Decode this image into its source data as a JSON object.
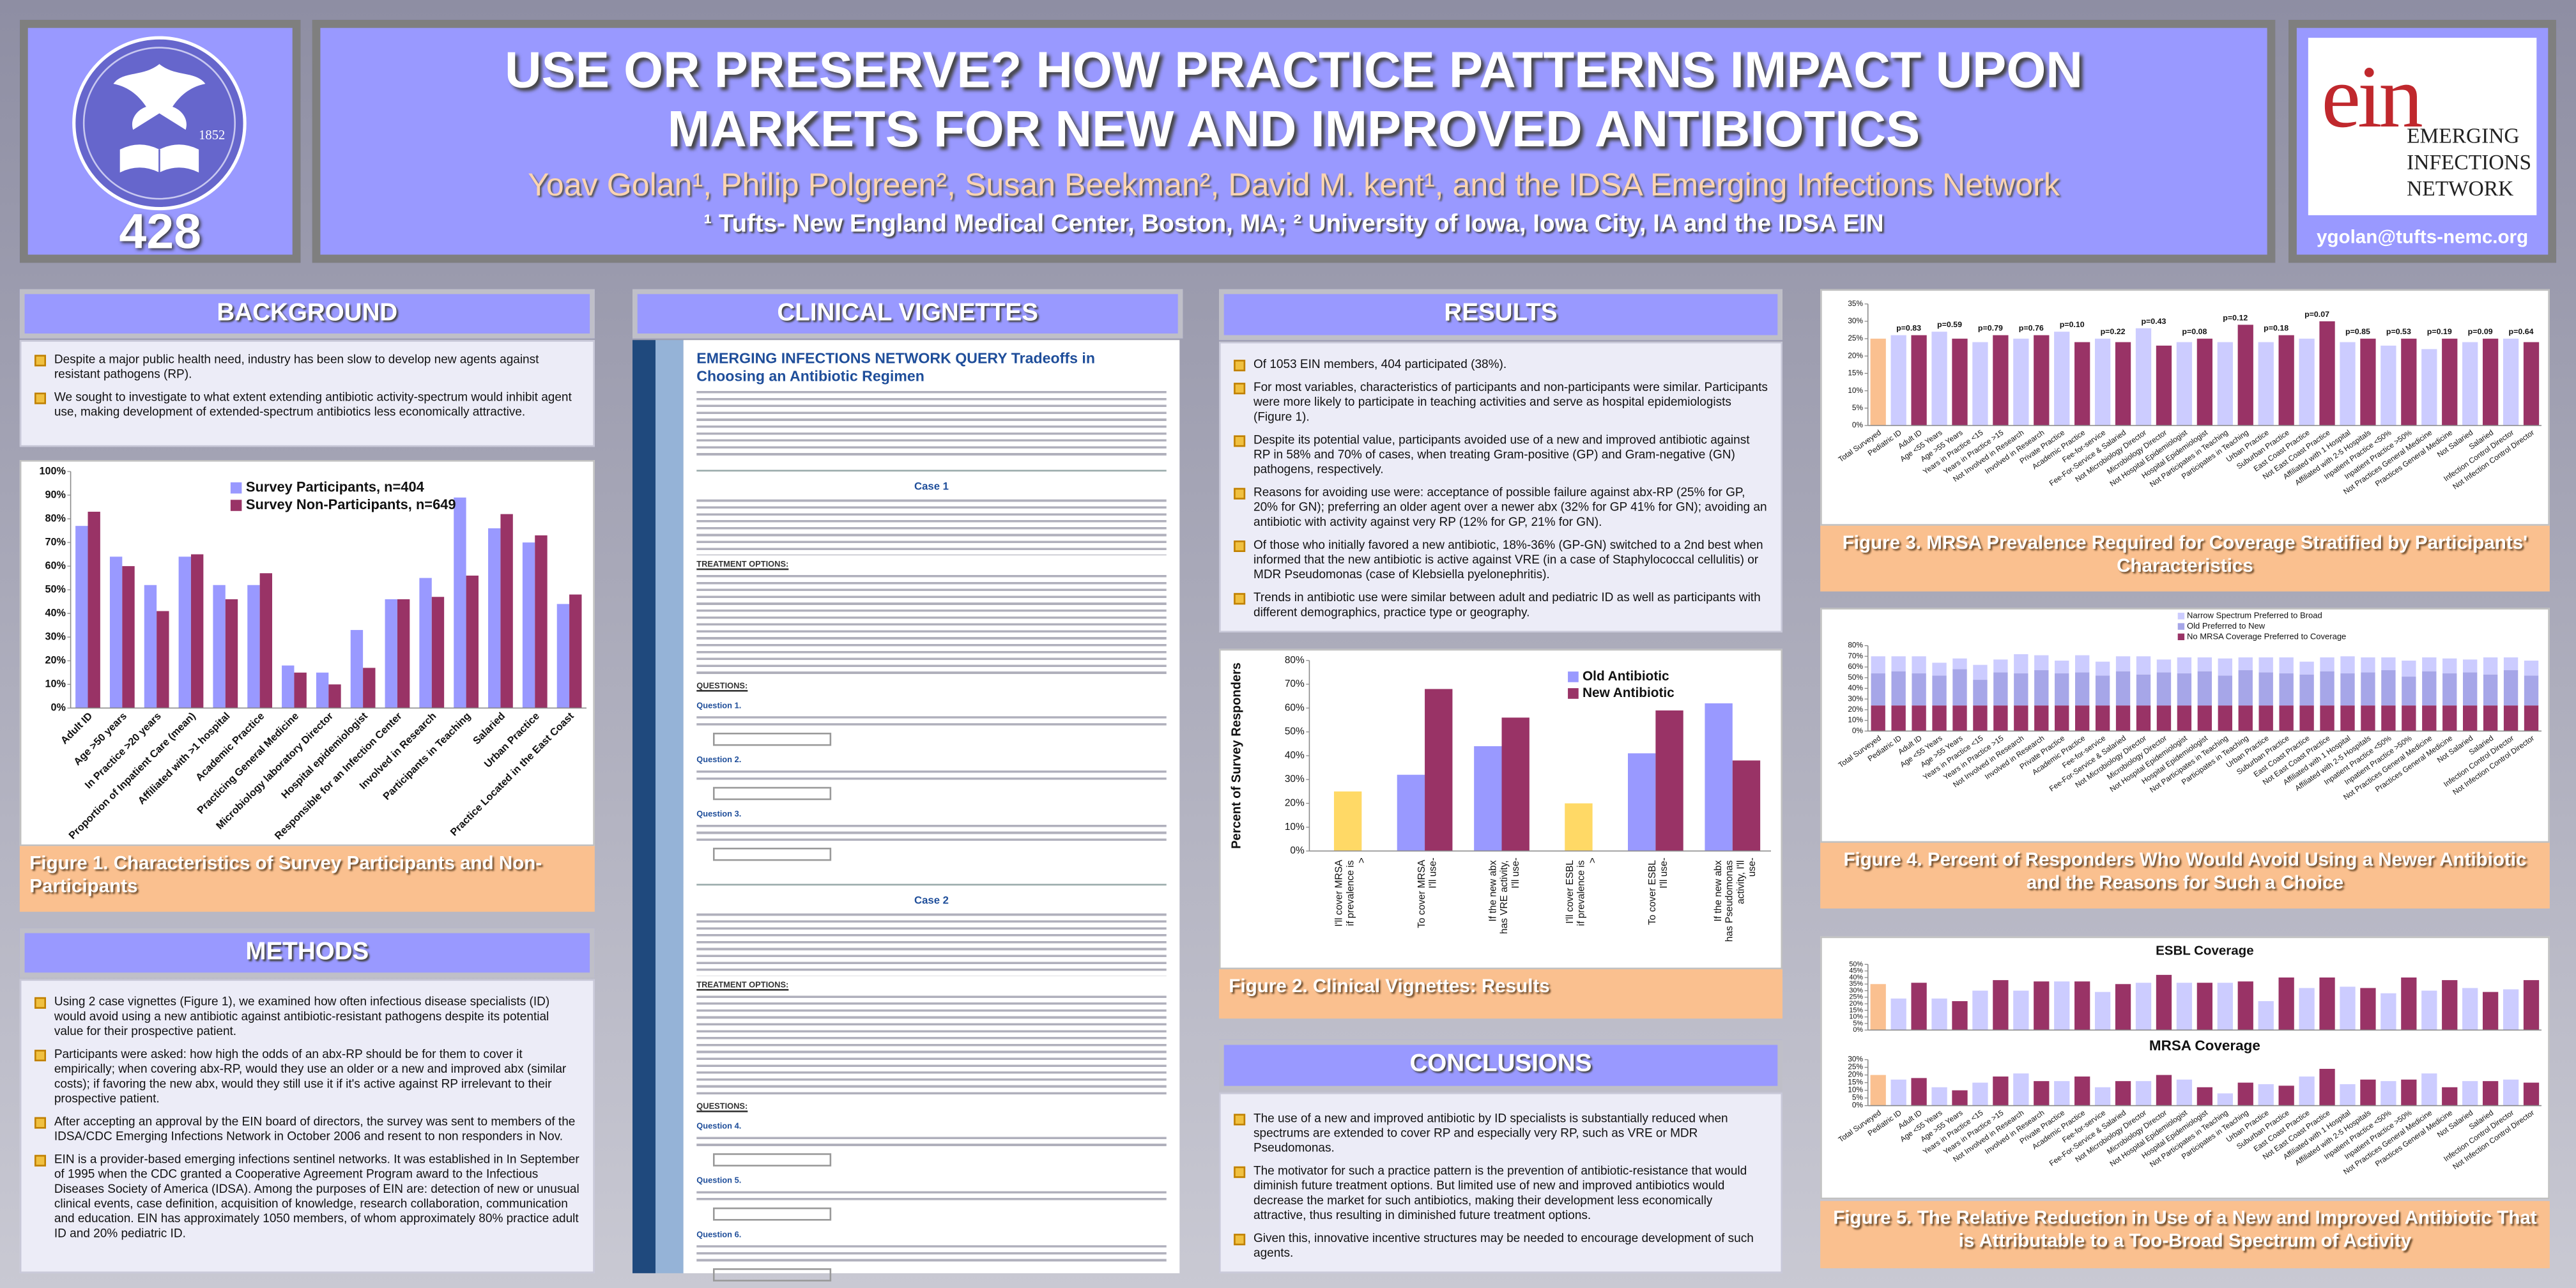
{
  "header": {
    "number": "428",
    "seal_year": "1852",
    "title_line1": "USE OR PRESERVE? HOW PRACTICE PATTERNS IMPACT UPON",
    "title_line2": "MARKETS FOR NEW AND IMPROVED ANTIBIOTICS",
    "authors": "Yoav Golan¹, Philip Polgreen², Susan Beekman², David M. kent¹, and the IDSA Emerging Infections Network",
    "affiliations": "¹ Tufts- New England Medical Center, Boston, MA;  ² University of Iowa, Iowa City, IA and the IDSA EIN",
    "logo_letters": "ein",
    "logo_name": [
      "EMERGING",
      "INFECTIONS",
      "NETWORK"
    ],
    "email": "ygolan@tufts-nemc.org"
  },
  "background": {
    "heading": "BACKGROUND",
    "bullets": [
      "Despite a major public health need, industry has been slow to develop new agents against resistant pathogens (RP).",
      "We sought to investigate to what extent extending antibiotic activity-spectrum would inhibit agent use, making development of extended-spectrum antibiotics less economically attractive."
    ]
  },
  "methods": {
    "heading": "METHODS",
    "bullets": [
      "Using 2 case vignettes (Figure 1), we examined how often infectious disease specialists (ID) would avoid using a new antibiotic against antibiotic-resistant pathogens despite its potential value for their prospective patient.",
      "Participants were asked: how high the odds of an abx-RP should be for them to cover it empirically; when covering abx-RP, would they use an older or a new and improved abx (similar costs); if favoring the new abx, would they still use it if it's active against RP irrelevant to their prospective patient.",
      "After accepting an approval by the EIN board of directors, the survey was sent to members of the IDSA/CDC Emerging Infections Network in October 2006 and resent to non responders in Nov.",
      "EIN is a provider-based emerging infections sentinel networks.  It was established in In September of 1995 when the CDC granted a Cooperative Agreement Program award to the Infectious Diseases Society of America (IDSA).  Among the purposes of EIN are: detection of new or unusual clinical events, case definition, acquisition of knowledge, research collaboration, communication and education.  EIN has approximately 1050 members, of whom approximately 80% practice adult ID and 20% pediatric ID."
    ]
  },
  "results": {
    "heading": "RESULTS",
    "bullets": [
      "Of 1053 EIN members, 404 participated (38%).",
      "For most variables, characteristics of participants and non-participants were similar. Participants were more likely to participate in teaching activities and serve as hospital epidemiologists (Figure 1).",
      "Despite its potential value, participants avoided use of a new and improved antibiotic against RP in 58% and 70% of cases, when treating Gram-positive (GP) and Gram-negative (GN) pathogens, respectively.",
      "Reasons for avoiding use were: acceptance of possible failure against abx-RP (25% for GP, 20% for GN); preferring an older agent over a newer abx (32% for GP 41% for GN); avoiding an antibiotic with activity against very RP (12% for GP, 21% for GN).",
      "Of those who initially favored a new antibiotic, 18%-36% (GP-GN) switched to a 2nd best when informed that the new antibiotic is active against VRE (in a case of Staphylococcal cellulitis) or MDR Pseudomonas (case of Klebsiella pyelonephritis).",
      "Trends in antibiotic use were similar between adult and pediatric ID as well as participants with different demographics, practice type or geography."
    ]
  },
  "conclusions": {
    "heading": "CONCLUSIONS",
    "bullets": [
      "The use of a new and improved antibiotic by ID specialists is substantially reduced when spectrums are extended to cover RP and especially very RP, such as VRE or MDR Pseudomonas.",
      "The motivator for such a practice pattern is the prevention of antibiotic-resistance that would diminish future treatment options.  But limited use of new and improved antibiotics would decrease the market for such antibiotics, making their development less economically attractive, thus  resulting in diminished future treatment options.",
      "Given this, innovative incentive structures may be needed to encourage development of such agents."
    ]
  },
  "vignettes": {
    "heading": "CLINICAL VIGNETTES",
    "doc_title_lead": "EMERGING INFECTIONS NETWORK QUERY",
    "doc_title_rest": "Tradeoffs in Choosing an Antibiotic Regimen",
    "cases": [
      {
        "heading": "Case 1",
        "treatment_label": "TREATMENT OPTIONS:",
        "questions_label": "QUESTIONS:",
        "questions": [
          "Question 1.",
          "Question 2.",
          "Question 3."
        ]
      },
      {
        "heading": "Case 2",
        "treatment_label": "TREATMENT OPTIONS:",
        "questions_label": "QUESTIONS:",
        "questions": [
          "Question 4.",
          "Question 5.",
          "Question 6."
        ]
      }
    ]
  },
  "figure5_caption": "Figure 5.  The Relative Reduction in Use of a New and Improved Antibiotic That is Attributable to a Too-Broad Spectrum of Activity",
  "chart_data": [
    {
      "type": "bar",
      "caption": "Figure 1.  Characteristics of Survey Participants and Non-Participants",
      "categories": [
        "Adult ID",
        "Age >50 years",
        "In Practice >20 years",
        "Proportion of Inpatient Care (mean)",
        "Affiliated with >1 hospital",
        "Academic Practice",
        "Practicing General Medicine",
        "Microbiology laboratory Director",
        "Hospital epidemiologist",
        "Responsible for an Infection Center",
        "Involved in Research",
        "Participants in Teaching",
        "Salaried",
        "Urban Practice",
        "Practice Located in the East Coast"
      ],
      "series": [
        {
          "name": "Survey Participants, n=404",
          "color": "#9999ff",
          "values": [
            77,
            64,
            52,
            64,
            52,
            52,
            18,
            15,
            33,
            46,
            55,
            89,
            76,
            70,
            44
          ]
        },
        {
          "name": "Survey Non-Participants, n=649",
          "color": "#993366",
          "values": [
            83,
            60,
            41,
            65,
            46,
            57,
            15,
            10,
            17,
            46,
            47,
            56,
            82,
            73,
            48
          ]
        }
      ],
      "ylim": [
        0,
        100
      ],
      "yticks": [
        {
          "value": 0,
          "label": "0%"
        },
        {
          "value": 10,
          "label": "10%"
        },
        {
          "value": 20,
          "label": "20%"
        },
        {
          "value": 30,
          "label": "30%"
        },
        {
          "value": 40,
          "label": "40%"
        },
        {
          "value": 50,
          "label": "50%"
        },
        {
          "value": 60,
          "label": "60%"
        },
        {
          "value": 70,
          "label": "70%"
        },
        {
          "value": 80,
          "label": "80%"
        },
        {
          "value": 90,
          "label": "90%"
        },
        {
          "value": 100,
          "label": "100%"
        }
      ],
      "grid": false,
      "legend_position": "upper-center"
    },
    {
      "type": "bar",
      "caption": "Figure 2.  Clinical Vignettes:  Results",
      "ylabel": "Percent of Survey Responders",
      "categories": [
        "I'll cover MRSA if prevalence is >",
        "To cover MRSA I'll use-",
        "If the new abx has VRE activity, I'll use-",
        "I'll cover ESBL if prevalence is >",
        "To cover ESBL I'll use-",
        "If the new abx has Pseudomonas activity, I'll use-"
      ],
      "highlight_values": [
        25,
        null,
        null,
        20,
        null,
        null
      ],
      "highlight_color": "#ffd966",
      "series": [
        {
          "name": "Old Antibiotic",
          "color": "#9999ff",
          "values": [
            null,
            32,
            44,
            null,
            41,
            62
          ]
        },
        {
          "name": "New Antibiotic",
          "color": "#993366",
          "values": [
            null,
            68,
            56,
            null,
            59,
            38
          ]
        }
      ],
      "ylim": [
        0,
        80
      ],
      "yticks": [
        {
          "value": 0,
          "label": "0%"
        },
        {
          "value": 10,
          "label": "10%"
        },
        {
          "value": 20,
          "label": "20%"
        },
        {
          "value": 30,
          "label": "30%"
        },
        {
          "value": 40,
          "label": "40%"
        },
        {
          "value": 50,
          "label": "50%"
        },
        {
          "value": 60,
          "label": "60%"
        },
        {
          "value": 70,
          "label": "70%"
        },
        {
          "value": 80,
          "label": "80%"
        }
      ],
      "grid": false,
      "legend_position": "upper-right"
    },
    {
      "type": "bar",
      "caption": "Figure 3.  MRSA Prevalence Required for Coverage Stratified by Participants' Characteristics",
      "categories": [
        "Total Surveyed",
        "Pediatric ID",
        "Adult ID",
        "Age <55 Years",
        "Age >55 Years",
        "Years in Practice <15",
        "Years in Practice >15",
        "Not Involved in Research",
        "Involved in Research",
        "Private Practice",
        "Academic Practice",
        "Fee-for-service",
        "Fee-For-Service & Salaried",
        "Not Microbiology Director",
        "Microbiology Director",
        "Not Hospital Epidemiologist",
        "Hospital Epidemiologist",
        "Not Participates in Teaching",
        "Participates in Teaching",
        "Urban Practice",
        "Suburban Practice",
        "East Coast Practice",
        "Not East Coast Practice",
        "Affiliated with 1 Hospital",
        "Affiliated with 2-5 Hospitals",
        "Inpatient Practice <50%",
        "Inpatient Practice >50%",
        "Not Practices General Medicine",
        "Practices General Medicine",
        "Not Salaried",
        "Salaried",
        "Infection Control Director",
        "Not Infection Control Director"
      ],
      "values": [
        25,
        26,
        26,
        27,
        25,
        24,
        26,
        25,
        26,
        27,
        24,
        25,
        24,
        28,
        23,
        24,
        25,
        24,
        29,
        24,
        26,
        25,
        30,
        24,
        25,
        23,
        25,
        22,
        25,
        24,
        25,
        25,
        24
      ],
      "bar_colors": [
        "#fac090",
        "#ccccff",
        "#993366"
      ],
      "annotations": [
        "p=0.83",
        "p=0.59",
        "p=0.79",
        "p=0.76",
        "p=0.10",
        "p=0.22",
        "p=0.43",
        "p=0.08",
        "p=0.12",
        "p=0.18",
        "p=0.07",
        "p=0.85",
        "p=0.53",
        "p=0.19",
        "p=0.09",
        "p=0.64"
      ],
      "ylim": [
        0,
        35
      ],
      "yticks": [
        {
          "value": 0,
          "label": "0%"
        },
        {
          "value": 5,
          "label": "5%"
        },
        {
          "value": 10,
          "label": "10%"
        },
        {
          "value": 15,
          "label": "15%"
        },
        {
          "value": 20,
          "label": "20%"
        },
        {
          "value": 25,
          "label": "25%"
        },
        {
          "value": 30,
          "label": "30%"
        },
        {
          "value": 35,
          "label": "35%"
        }
      ],
      "grid": false
    },
    {
      "type": "stacked_bar",
      "caption": "Figure 4.  Percent of Responders Who Would Avoid Using a Newer Antibiotic and the Reasons for Such a Choice",
      "categories": [
        "Total Surveyed",
        "Pediatric ID",
        "Adult ID",
        "Age <55 Years",
        "Age >55 Years",
        "Years in Practice <15",
        "Years in Practice >15",
        "Not Involved in Research",
        "Involved in Research",
        "Private Practice",
        "Academic Practice",
        "Fee-for-service",
        "Fee-For-Service & Salaried",
        "Not Microbiology Director",
        "Microbiology Director",
        "Not Hospital Epidemiologist",
        "Hospital Epidemiologist",
        "Not Participates in Teaching",
        "Participates in Teaching",
        "Urban Practice",
        "Suburban Practice",
        "East Coast Practice",
        "Not East Coast Practice",
        "Affiliated with 1 Hospital",
        "Affiliated with 2-5 Hospitals",
        "Inpatient Practice <50%",
        "Inpatient Practice >50%",
        "Not Practices General Medicine",
        "Practices General Medicine",
        "Not Salaried",
        "Salaried",
        "Infection Control Director",
        "Not Infection Control Director"
      ],
      "series": [
        {
          "name": "Narrow Spectrum Preferred to Broad",
          "color": "#ccccff",
          "values": [
            16,
            14,
            16,
            12,
            10,
            14,
            12,
            18,
            14,
            12,
            16,
            13,
            14,
            17,
            12,
            15,
            13,
            16,
            12,
            14,
            15,
            12,
            13,
            16,
            14,
            12,
            15,
            13,
            14,
            12,
            16,
            12,
            14
          ]
        },
        {
          "name": "Old Preferred to New",
          "color": "#a6a6e8",
          "values": [
            30,
            32,
            30,
            28,
            34,
            24,
            31,
            30,
            33,
            30,
            31,
            28,
            32,
            29,
            31,
            30,
            32,
            28,
            33,
            31,
            30,
            29,
            32,
            30,
            31,
            33,
            27,
            32,
            30,
            31,
            29,
            33,
            28
          ]
        },
        {
          "name": "No MRSA Coverage Preferred to Coverage",
          "color": "#993366",
          "values": [
            24,
            24,
            24,
            24,
            24,
            24,
            24,
            24,
            24,
            24,
            24,
            24,
            24,
            24,
            24,
            24,
            24,
            24,
            24,
            24,
            24,
            24,
            24,
            24,
            24,
            24,
            24,
            24,
            24,
            24,
            24,
            24,
            24
          ]
        }
      ],
      "ylim": [
        0,
        80
      ],
      "yticks": [
        {
          "value": 0,
          "label": "0%"
        },
        {
          "value": 10,
          "label": "10%"
        },
        {
          "value": 20,
          "label": "20%"
        },
        {
          "value": 30,
          "label": "30%"
        },
        {
          "value": 40,
          "label": "40%"
        },
        {
          "value": 50,
          "label": "50%"
        },
        {
          "value": 60,
          "label": "60%"
        },
        {
          "value": 70,
          "label": "70%"
        },
        {
          "value": 80,
          "label": "80%"
        }
      ],
      "grid": false,
      "legend_position": "top"
    },
    {
      "type": "bar",
      "title": "ESBL Coverage",
      "values": [
        35,
        24,
        36,
        24,
        22,
        30,
        38,
        30,
        37,
        37,
        37,
        29,
        35,
        36,
        42,
        36,
        36,
        36,
        37,
        22,
        40,
        32,
        40,
        33,
        32,
        28,
        40,
        30,
        38,
        32,
        29,
        31,
        38
      ],
      "bar_colors": [
        "#fac090",
        "#ccccff",
        "#993366"
      ],
      "ylim": [
        0,
        50
      ],
      "yticks": [
        {
          "value": 0,
          "label": "0%"
        },
        {
          "value": 5,
          "label": "5%"
        },
        {
          "value": 10,
          "label": "10%"
        },
        {
          "value": 15,
          "label": "15%"
        },
        {
          "value": 20,
          "label": "20%"
        },
        {
          "value": 25,
          "label": "25%"
        },
        {
          "value": 30,
          "label": "30%"
        },
        {
          "value": 35,
          "label": "35%"
        },
        {
          "value": 40,
          "label": "40%"
        },
        {
          "value": 45,
          "label": "45%"
        },
        {
          "value": 50,
          "label": "50%"
        }
      ],
      "grid": false
    },
    {
      "type": "bar",
      "title": "MRSA Coverage",
      "categories": [
        "Total Surveyed",
        "Pediatric ID",
        "Adult ID",
        "Age <55 Years",
        "Age >55 Years",
        "Years in Practice <15",
        "Years in Practice >15",
        "Not Involved in Research",
        "Involved in Research",
        "Private Practice",
        "Academic Practice",
        "Fee-for-service",
        "Fee-For-Service & Salaried",
        "Not Microbiology Director",
        "Microbiology Director",
        "Not Hospital Epidemiologist",
        "Hospital Epidemiologist",
        "Not Participates in Teaching",
        "Participates in Teaching",
        "Urban Practice",
        "Suburban Practice",
        "East Coast Practice",
        "Not East Coast Practice",
        "Affiliated with 1 Hospital",
        "Affiliated with 2-5 Hospitals",
        "Inpatient Practice <50%",
        "Inpatient Practice >50%",
        "Not Practices General Medicine",
        "Practices General Medicine",
        "Not Salaried",
        "Salaried",
        "Infection Control Director",
        "Not Infection Control Director"
      ],
      "values": [
        20,
        17,
        18,
        12,
        10,
        15,
        19,
        21,
        16,
        16,
        19,
        12,
        16,
        16,
        20,
        17,
        12,
        8,
        15,
        14,
        13,
        19,
        24,
        14,
        17,
        16,
        17,
        21,
        12,
        16,
        16,
        17,
        15
      ],
      "bar_colors": [
        "#fac090",
        "#ccccff",
        "#993366"
      ],
      "ylim": [
        0,
        30
      ],
      "yticks": [
        {
          "value": 0,
          "label": "0%"
        },
        {
          "value": 5,
          "label": "5%"
        },
        {
          "value": 10,
          "label": "10%"
        },
        {
          "value": 15,
          "label": "15%"
        },
        {
          "value": 20,
          "label": "20%"
        },
        {
          "value": 25,
          "label": "25%"
        },
        {
          "value": 30,
          "label": "30%"
        }
      ],
      "grid": false
    }
  ]
}
